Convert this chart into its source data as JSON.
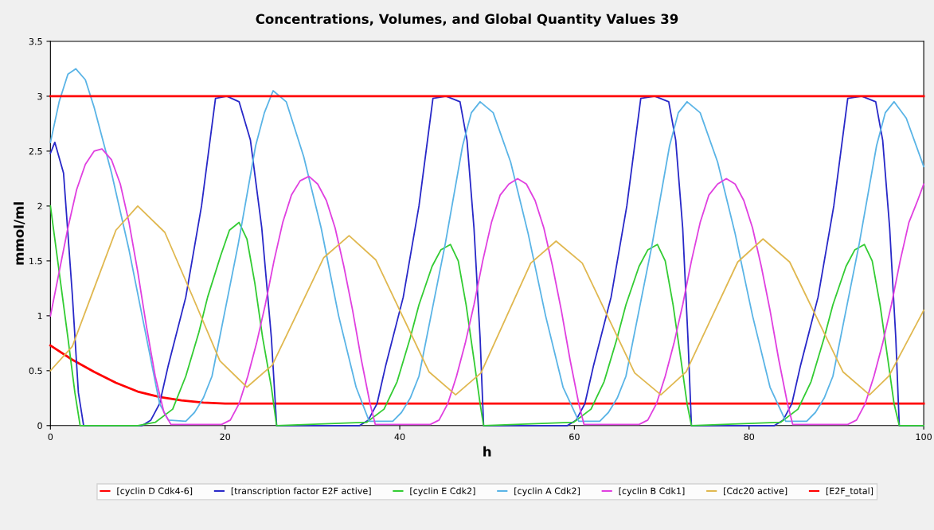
{
  "chart_data": {
    "type": "line",
    "title": "Concentrations, Volumes, and Global Quantity Values 39",
    "xlabel": "h",
    "ylabel": "mmol/ml",
    "xlim": [
      0,
      100
    ],
    "xticks": [
      0,
      20,
      40,
      60,
      80,
      100
    ],
    "ylim": [
      0,
      3.5
    ],
    "yticks": [
      0,
      0.5,
      1,
      1.5,
      2,
      2.5,
      3,
      3.5
    ],
    "legend": "bottom",
    "grid": false,
    "marker": "none",
    "line_style": "solid",
    "series": [
      {
        "name": "[cyclin D Cdk4-6]",
        "color": "#ff0000",
        "x": [
          0,
          2.5,
          5,
          7.5,
          10,
          12.5,
          15,
          17.5,
          20,
          100
        ],
        "values": [
          0.73,
          0.6,
          0.49,
          0.39,
          0.31,
          0.26,
          0.23,
          0.21,
          0.2,
          0.2
        ]
      },
      {
        "name": "[transcription factor E2F active]",
        "color": "#2828c8",
        "x": [
          0,
          0.5,
          1.5,
          2.5,
          3.2,
          3.8,
          10.5,
          11.5,
          12.5,
          13.5,
          15.5,
          17.3,
          18.9,
          20.2,
          21.6,
          22.9,
          24.2,
          25.3,
          25.9,
          35.4,
          36.4,
          37.4,
          38.4,
          40.4,
          42.2,
          43.8,
          45.3,
          46.9,
          47.7,
          48.5,
          49.2,
          49.6,
          59.2,
          60.2,
          61.2,
          62.2,
          64.2,
          66.0,
          67.6,
          69.2,
          70.8,
          71.6,
          72.4,
          73.0,
          73.4,
          82.9,
          83.9,
          84.9,
          85.9,
          87.9,
          89.7,
          91.3,
          92.9,
          94.5,
          95.3,
          96.1,
          96.8,
          97.2,
          100
        ],
        "values": [
          2.48,
          2.58,
          2.3,
          1.2,
          0.3,
          0,
          0,
          0.05,
          0.2,
          0.55,
          1.17,
          2.0,
          2.98,
          3.0,
          2.95,
          2.6,
          1.8,
          0.8,
          0,
          0,
          0.05,
          0.2,
          0.55,
          1.17,
          2.0,
          2.98,
          3.0,
          2.95,
          2.6,
          1.8,
          0.8,
          0,
          0,
          0.05,
          0.2,
          0.55,
          1.17,
          2.0,
          2.98,
          3.0,
          2.95,
          2.6,
          1.8,
          0.8,
          0,
          0,
          0.05,
          0.2,
          0.55,
          1.17,
          2.0,
          2.98,
          3.0,
          2.95,
          2.6,
          1.8,
          0.8,
          0,
          0
        ]
      },
      {
        "name": "[cyclin E Cdk2]",
        "color": "#33cc33",
        "x": [
          0,
          1,
          2,
          2.8,
          3.4,
          10,
          12,
          14,
          15.5,
          17,
          18,
          19.5,
          20.5,
          21.6,
          22.5,
          23.4,
          24.3,
          25.3,
          25.9,
          36.2,
          38.2,
          39.7,
          41.2,
          42.2,
          43.7,
          44.7,
          45.8,
          46.7,
          47.6,
          48.5,
          49.2,
          49.6,
          59.9,
          61.9,
          63.4,
          64.9,
          65.9,
          67.4,
          68.4,
          69.5,
          70.4,
          71.3,
          72.2,
          72.9,
          73.4,
          83.6,
          85.6,
          87.1,
          88.6,
          89.6,
          91.1,
          92.1,
          93.2,
          94.1,
          95.0,
          95.9,
          96.6,
          97.2,
          100
        ],
        "values": [
          2.0,
          1.4,
          0.8,
          0.3,
          0,
          0,
          0.03,
          0.15,
          0.45,
          0.85,
          1.17,
          1.55,
          1.78,
          1.85,
          1.7,
          1.3,
          0.8,
          0.35,
          0,
          0.03,
          0.15,
          0.4,
          0.8,
          1.1,
          1.45,
          1.6,
          1.65,
          1.5,
          1.1,
          0.6,
          0.2,
          0,
          0.03,
          0.15,
          0.4,
          0.8,
          1.1,
          1.45,
          1.6,
          1.65,
          1.5,
          1.1,
          0.6,
          0.2,
          0,
          0.03,
          0.15,
          0.4,
          0.8,
          1.1,
          1.45,
          1.6,
          1.65,
          1.5,
          1.1,
          0.6,
          0.2,
          0,
          0
        ]
      },
      {
        "name": "[cyclin A Cdk2]",
        "color": "#5ab4e6",
        "x": [
          0,
          1,
          2,
          2.9,
          4,
          5,
          7,
          9,
          11,
          12.5,
          13.5,
          15.5,
          16.5,
          17.5,
          18.5,
          20,
          21.5,
          22.5,
          23.5,
          24.5,
          25.5,
          27,
          29,
          31,
          33,
          35,
          36.5,
          39.2,
          40.2,
          41.2,
          42.2,
          43.7,
          45.2,
          46.2,
          47.2,
          48.2,
          49.2,
          50.7,
          52.7,
          54.7,
          56.7,
          58.7,
          60.5,
          62.9,
          63.9,
          64.9,
          65.9,
          67.4,
          68.9,
          69.9,
          70.9,
          71.9,
          72.9,
          74.4,
          76.4,
          78.4,
          80.4,
          82.4,
          84.2,
          86.6,
          87.6,
          88.6,
          89.6,
          91.1,
          92.6,
          93.6,
          94.6,
          95.6,
          96.6,
          98,
          100
        ],
        "values": [
          2.58,
          2.95,
          3.2,
          3.25,
          3.15,
          2.9,
          2.3,
          1.6,
          0.8,
          0.2,
          0.05,
          0.04,
          0.12,
          0.25,
          0.45,
          1.05,
          1.65,
          2.1,
          2.55,
          2.85,
          3.05,
          2.95,
          2.45,
          1.8,
          1.0,
          0.35,
          0.04,
          0.04,
          0.12,
          0.25,
          0.45,
          1.05,
          1.65,
          2.1,
          2.55,
          2.85,
          2.95,
          2.85,
          2.4,
          1.75,
          1.0,
          0.35,
          0.04,
          0.04,
          0.12,
          0.25,
          0.45,
          1.05,
          1.65,
          2.1,
          2.55,
          2.85,
          2.95,
          2.85,
          2.4,
          1.75,
          1.0,
          0.35,
          0.04,
          0.04,
          0.12,
          0.25,
          0.45,
          1.05,
          1.65,
          2.1,
          2.55,
          2.85,
          2.95,
          2.8,
          2.36
        ]
      },
      {
        "name": "[cyclin B Cdk1]",
        "color": "#e040e0",
        "x": [
          0,
          1,
          2,
          3,
          4,
          5,
          5.9,
          7,
          8,
          9,
          10,
          11,
          12,
          13,
          13.8,
          19.6,
          20.6,
          21.6,
          22.6,
          23.6,
          24.6,
          25.6,
          26.6,
          27.6,
          28.6,
          29.6,
          30.6,
          31.6,
          32.6,
          33.6,
          34.6,
          35.6,
          36.6,
          37.2,
          43.5,
          44.5,
          45.5,
          46.5,
          47.5,
          48.5,
          49.5,
          50.5,
          51.5,
          52.5,
          53.5,
          54.5,
          55.5,
          56.5,
          57.5,
          58.5,
          59.5,
          60.5,
          61.1,
          67.4,
          68.4,
          69.4,
          70.4,
          71.4,
          72.4,
          73.4,
          74.4,
          75.4,
          76.4,
          77.4,
          78.4,
          79.4,
          80.4,
          81.4,
          82.4,
          83.4,
          84.4,
          85.0,
          91.3,
          92.3,
          93.3,
          94.3,
          95.3,
          96.3,
          97.3,
          98.3,
          99.3,
          100
        ],
        "values": [
          1.0,
          1.4,
          1.8,
          2.15,
          2.38,
          2.5,
          2.52,
          2.42,
          2.2,
          1.85,
          1.4,
          0.9,
          0.45,
          0.12,
          0.01,
          0.01,
          0.05,
          0.2,
          0.45,
          0.75,
          1.1,
          1.5,
          1.85,
          2.1,
          2.23,
          2.27,
          2.2,
          2.05,
          1.8,
          1.45,
          1.05,
          0.6,
          0.2,
          0.01,
          0.01,
          0.05,
          0.2,
          0.45,
          0.75,
          1.1,
          1.5,
          1.85,
          2.1,
          2.2,
          2.25,
          2.2,
          2.05,
          1.8,
          1.45,
          1.05,
          0.6,
          0.2,
          0.01,
          0.01,
          0.05,
          0.2,
          0.45,
          0.75,
          1.1,
          1.5,
          1.85,
          2.1,
          2.2,
          2.25,
          2.2,
          2.05,
          1.8,
          1.45,
          1.05,
          0.6,
          0.2,
          0.01,
          0.01,
          0.05,
          0.2,
          0.45,
          0.75,
          1.1,
          1.5,
          1.85,
          2.05,
          2.2
        ]
      },
      {
        "name": "[Cdc20 active]",
        "color": "#e0b850",
        "x": [
          0,
          2.5,
          5,
          7.5,
          10,
          13.1,
          16.25,
          19.4,
          22.5,
          25.4,
          28.35,
          31.3,
          34.2,
          37.25,
          40.3,
          43.35,
          46.4,
          49.3,
          52.15,
          55,
          57.9,
          60.9,
          63.9,
          66.9,
          69.9,
          72.8,
          75.75,
          78.7,
          81.6,
          84.65,
          87.7,
          90.75,
          93.8,
          96,
          98,
          100
        ],
        "values": [
          0.5,
          0.72,
          1.25,
          1.78,
          2.0,
          1.76,
          1.18,
          0.59,
          0.35,
          0.55,
          1.04,
          1.53,
          1.73,
          1.51,
          1.0,
          0.49,
          0.28,
          0.48,
          0.98,
          1.48,
          1.68,
          1.48,
          0.98,
          0.48,
          0.28,
          0.49,
          0.99,
          1.49,
          1.7,
          1.49,
          0.99,
          0.49,
          0.28,
          0.45,
          0.75,
          1.05
        ]
      },
      {
        "name": "[E2F_total]",
        "color": "#ff0000",
        "x": [
          0,
          100
        ],
        "values": [
          3.0,
          3.0
        ]
      }
    ]
  }
}
